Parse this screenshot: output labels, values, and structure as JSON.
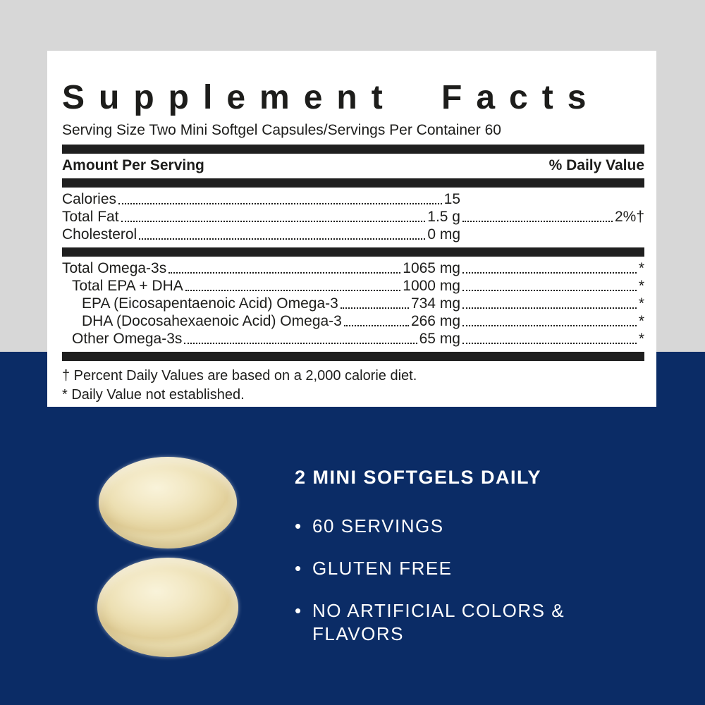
{
  "colors": {
    "background_top": "#d7d7d7",
    "background_bottom": "#0b2c66",
    "panel_background": "#ffffff",
    "panel_text": "#1d1d1b",
    "benefits_text": "#ffffff",
    "capsule_base": "#ecdfb2",
    "capsule_highlight": "#f9f3da",
    "capsule_shadow": "#e2d09b"
  },
  "supplement_panel": {
    "title": "Supplement Facts",
    "serving_info": "Serving Size Two Mini Softgel Capsules/Servings Per Container 60",
    "header": {
      "amount_label": "Amount Per Serving",
      "dv_label": "% Daily Value"
    },
    "nutrient_rows": [
      {
        "label": "Calories",
        "amount": "15",
        "dv": ""
      },
      {
        "label": "Total Fat",
        "amount": "1.5 g",
        "dv": "2%†"
      },
      {
        "label": "Cholesterol",
        "amount": "0 mg",
        "dv": ""
      }
    ],
    "omega_rows": [
      {
        "label": "Total Omega-3s",
        "amount": "1065 mg",
        "dv": "*"
      },
      {
        "label": "Total EPA + DHA",
        "amount": "1000 mg",
        "dv": "*"
      },
      {
        "label": "EPA (Eicosapentaenoic Acid) Omega-3",
        "amount": "734 mg",
        "dv": "*"
      },
      {
        "label": "DHA (Docosahexaenoic Acid) Omega-3",
        "amount": "266 mg",
        "dv": "*"
      },
      {
        "label": "Other Omega-3s",
        "amount": "65 mg",
        "dv": "*"
      }
    ],
    "footnotes": [
      "† Percent Daily Values are based on a 2,000 calorie diet.",
      "* Daily Value not established."
    ]
  },
  "benefits": {
    "heading": "2 MINI SOFTGELS DAILY",
    "bullet_glyph": "•",
    "items": [
      "60 SERVINGS",
      "GLUTEN FREE",
      "NO ARTIFICIAL COLORS & FLAVORS"
    ]
  }
}
